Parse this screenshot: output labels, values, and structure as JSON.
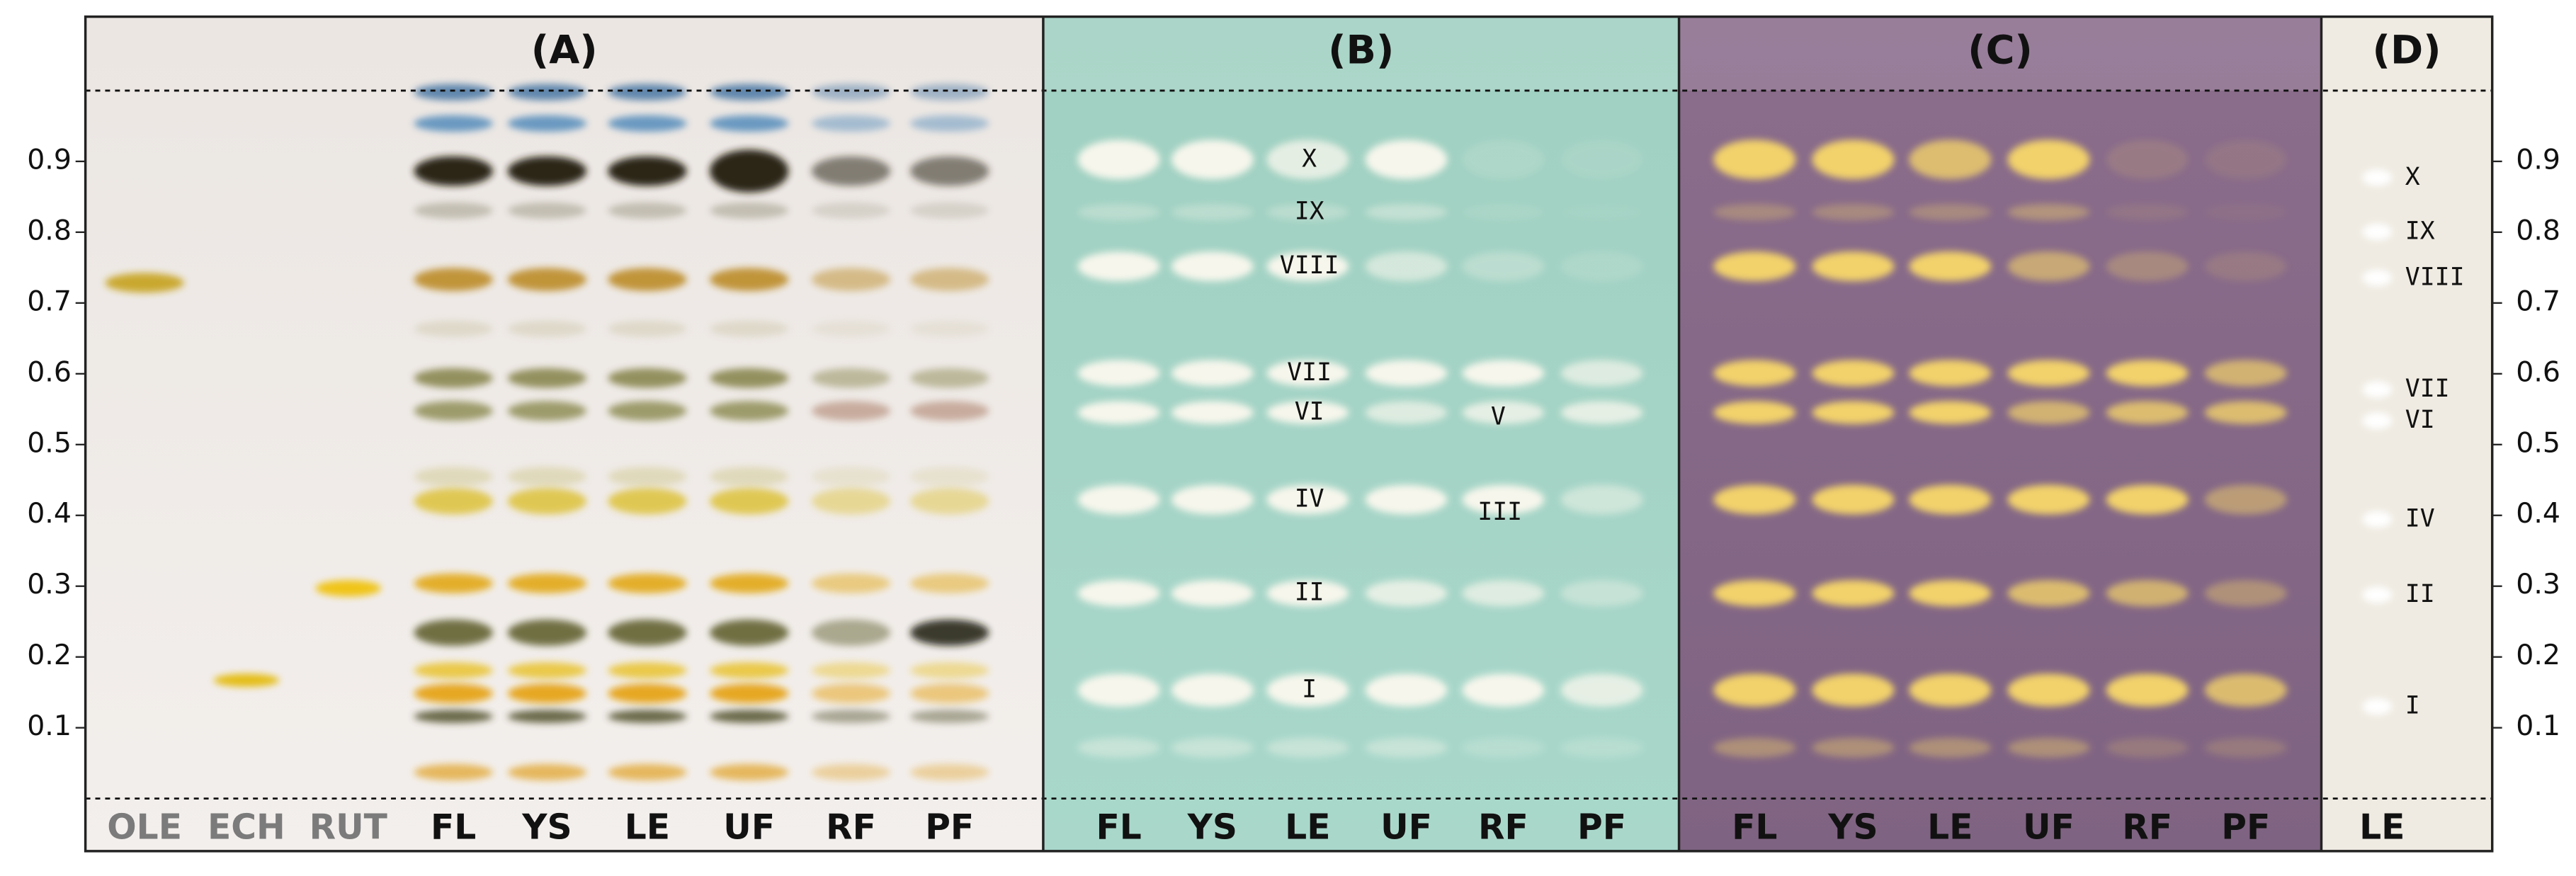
{
  "panels": [
    {
      "label": "(A)",
      "lanes": [
        "OLE",
        "ECH",
        "RUT",
        "FL",
        "YS",
        "LE",
        "UF",
        "RF",
        "PF"
      ]
    },
    {
      "label": "(B)",
      "lanes": [
        "FL",
        "YS",
        "LE",
        "UF",
        "RF",
        "PF"
      ],
      "band_labels": [
        "X",
        "IX",
        "VIII",
        "VII",
        "VI",
        "V",
        "IV",
        "III",
        "II",
        "I"
      ]
    },
    {
      "label": "(C)",
      "lanes": [
        "FL",
        "YS",
        "LE",
        "UF",
        "RF",
        "PF"
      ]
    },
    {
      "label": "(D)",
      "lanes": [
        "LE"
      ],
      "band_labels": [
        "X",
        "IX",
        "VIII",
        "VII",
        "VI",
        "IV",
        "II",
        "I"
      ]
    }
  ],
  "left_axis": {
    "ticks": [
      0.1,
      0.2,
      0.3,
      0.4,
      0.5,
      0.6,
      0.7,
      0.8,
      0.9
    ]
  },
  "right_axis": {
    "ticks": [
      0.1,
      0.2,
      0.3,
      0.4,
      0.5,
      0.6,
      0.7,
      0.8,
      0.9
    ]
  }
}
